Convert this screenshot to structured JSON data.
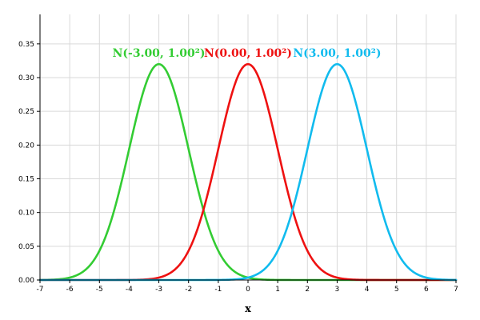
{
  "chart_data": {
    "type": "line",
    "xlabel": "x",
    "ylabel": "",
    "xlim": [
      -7,
      7
    ],
    "ylim": [
      0,
      0.3937
    ],
    "x_ticks": [
      -7,
      -6,
      -5,
      -4,
      -3,
      -2,
      -1,
      0,
      1,
      2,
      3,
      4,
      5,
      6,
      7
    ],
    "x_tick_labels": [
      "-7",
      "-6",
      "-5",
      "-4",
      "-3",
      "-2",
      "-1",
      "0",
      "1",
      "2",
      "3",
      "4",
      "5",
      "6",
      "7"
    ],
    "y_ticks": [
      0,
      0.05,
      0.1,
      0.15,
      0.2,
      0.25,
      0.3,
      0.35
    ],
    "y_tick_labels": [
      "0.00",
      "0.05",
      "0.10",
      "0.15",
      "0.20",
      "0.25",
      "0.30",
      "0.35"
    ],
    "grid": true,
    "legend": "labels above curve peaks",
    "series": [
      {
        "name": "N(-3.00, 1.00²)",
        "mean": -3.0,
        "sd": 1.0,
        "peak": 0.32,
        "color": "#33cc33"
      },
      {
        "name": "N(0.00, 1.00²)",
        "mean": 0.0,
        "sd": 1.0,
        "peak": 0.32,
        "color": "#ee1111"
      },
      {
        "name": "N(3.00, 1.00²)",
        "mean": 3.0,
        "sd": 1.0,
        "peak": 0.32,
        "color": "#11bbee"
      }
    ]
  }
}
